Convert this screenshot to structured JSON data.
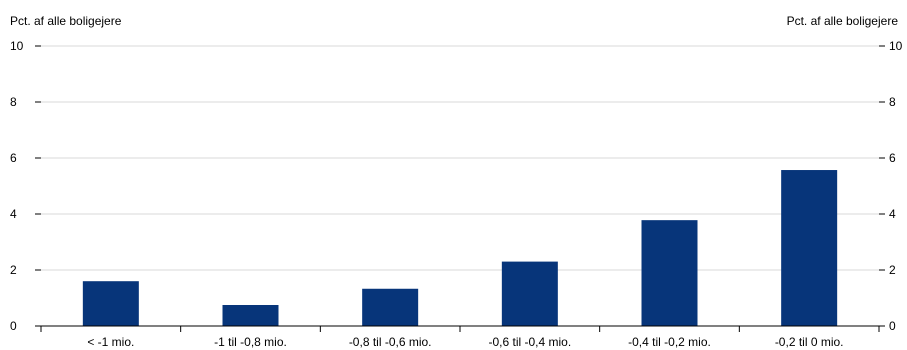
{
  "chart_data": {
    "type": "bar",
    "title": "",
    "ylabel_left": "Pct. af alle boligejere",
    "ylabel_right": "Pct. af alle boligejere",
    "xlabel": "",
    "categories": [
      "< -1 mio.",
      "-1 til -0,8 mio.",
      "-0,8 til -0,6 mio.",
      "-0,6 til -0,4 mio.",
      "-0,4 til -0,2 mio.",
      "-0,2 til 0 mio."
    ],
    "values": [
      1.6,
      0.75,
      1.33,
      2.3,
      3.78,
      5.57
    ],
    "ylim": [
      0,
      10
    ],
    "yticks": [
      0,
      2,
      4,
      6,
      8,
      10
    ],
    "grid": true,
    "legend": "none",
    "colors": {
      "bar": "#07357a",
      "grid": "#d9d9d9",
      "axis": "#000000"
    }
  }
}
